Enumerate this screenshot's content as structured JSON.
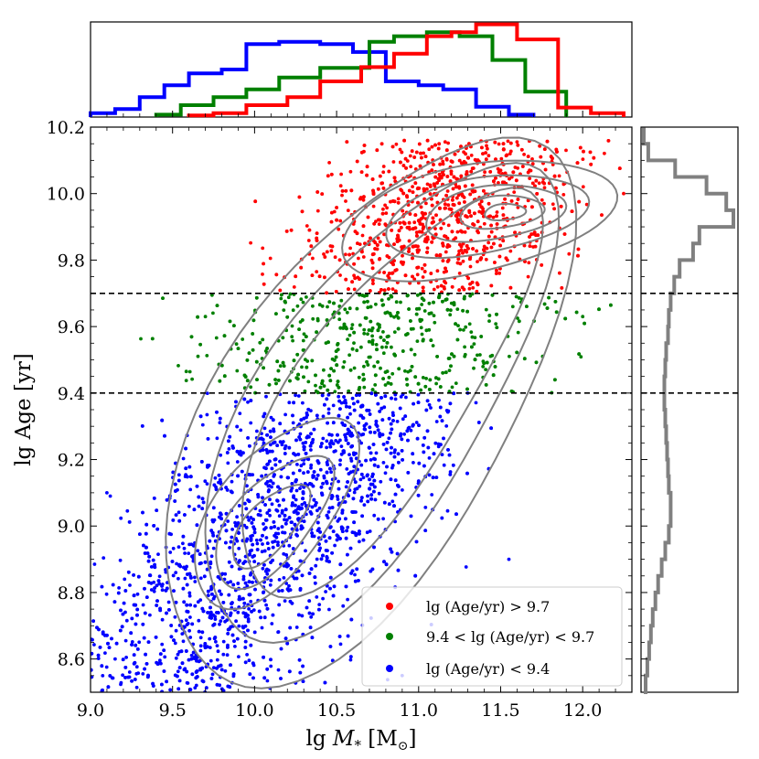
{
  "chart_data": {
    "type": "scatter",
    "xlabel": "lg M* [M⊙]",
    "ylabel": "lg Age [yr]",
    "xlim": [
      9.0,
      12.3
    ],
    "ylim": [
      8.5,
      10.2
    ],
    "x_ticks": [
      "9.0",
      "9.5",
      "10.0",
      "10.5",
      "11.0",
      "11.5",
      "12.0"
    ],
    "y_ticks": [
      "8.6",
      "8.8",
      "9.0",
      "9.2",
      "9.4",
      "9.6",
      "9.8",
      "10.0",
      "10.2"
    ],
    "thresholds": [
      9.4,
      9.7
    ],
    "legend_position": "lower-right",
    "series": [
      {
        "name": "lg (Age/yr) > 9.7",
        "color": "#ff0000",
        "age_range": [
          9.7,
          10.2
        ],
        "center": [
          11.45,
          9.93
        ],
        "mass_range": [
          9.5,
          12.25
        ]
      },
      {
        "name": "9.4 < lg (Age/yr) < 9.7",
        "color": "#008000",
        "age_range": [
          9.4,
          9.7
        ],
        "center": [
          11.0,
          9.55
        ],
        "mass_range": [
          9.4,
          11.95
        ]
      },
      {
        "name": "lg (Age/yr) < 9.4",
        "color": "#0000ff",
        "age_range": [
          8.5,
          9.4
        ],
        "center": [
          10.1,
          9.05
        ],
        "mass_range": [
          9.0,
          11.6
        ]
      }
    ],
    "top_histograms": [
      {
        "series": "lg (Age/yr) < 9.4",
        "color": "#0000ff",
        "edges": [
          9.0,
          9.15,
          9.3,
          9.45,
          9.6,
          9.8,
          9.95,
          10.15,
          10.4,
          10.6,
          10.8,
          11.0,
          11.15,
          11.35,
          11.55,
          11.7
        ],
        "heights": [
          0.05,
          0.1,
          0.25,
          0.4,
          0.55,
          0.6,
          0.92,
          0.95,
          0.92,
          0.82,
          0.45,
          0.4,
          0.35,
          0.13,
          0.03
        ]
      },
      {
        "series": "9.4 < lg (Age/yr) < 9.7",
        "color": "#008000",
        "edges": [
          9.4,
          9.55,
          9.75,
          9.95,
          10.15,
          10.4,
          10.7,
          10.85,
          11.05,
          11.25,
          11.45,
          11.65,
          11.9
        ],
        "heights": [
          0.03,
          0.15,
          0.25,
          0.35,
          0.5,
          0.62,
          0.95,
          1.02,
          1.07,
          1.02,
          0.72,
          0.32
        ]
      },
      {
        "series": "lg (Age/yr) > 9.7",
        "color": "#ff0000",
        "edges": [
          9.6,
          9.75,
          9.95,
          10.2,
          10.4,
          10.65,
          10.85,
          11.05,
          11.2,
          11.35,
          11.6,
          11.85,
          12.05,
          12.25
        ],
        "heights": [
          0.02,
          0.05,
          0.15,
          0.25,
          0.45,
          0.63,
          0.8,
          1.02,
          1.07,
          1.17,
          0.98,
          0.12,
          0.05
        ]
      }
    ],
    "right_histogram": {
      "color": "#808080",
      "edges": [
        8.5,
        8.55,
        8.6,
        8.65,
        8.7,
        8.75,
        8.8,
        8.85,
        8.9,
        8.95,
        9.0,
        9.05,
        9.1,
        9.15,
        9.2,
        9.25,
        9.3,
        9.35,
        9.4,
        9.45,
        9.5,
        9.55,
        9.6,
        9.65,
        9.7,
        9.75,
        9.8,
        9.85,
        9.9,
        9.95,
        10.0,
        10.05,
        10.1,
        10.15,
        10.2
      ],
      "values": [
        0.02,
        0.04,
        0.06,
        0.08,
        0.1,
        0.13,
        0.16,
        0.2,
        0.24,
        0.28,
        0.3,
        0.3,
        0.28,
        0.27,
        0.26,
        0.25,
        0.24,
        0.23,
        0.23,
        0.24,
        0.25,
        0.27,
        0.28,
        0.3,
        0.34,
        0.4,
        0.55,
        0.62,
        1.0,
        0.92,
        0.7,
        0.35,
        0.05,
        0.0
      ]
    }
  }
}
